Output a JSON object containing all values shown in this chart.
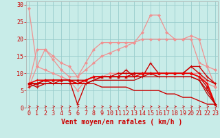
{
  "title": "",
  "xlabel": "Vent moyen/en rafales ( km/h )",
  "ylabel": "",
  "bg_color": "#c8ece8",
  "grid_color": "#99cccc",
  "x_ticks": [
    0,
    1,
    2,
    3,
    4,
    5,
    6,
    7,
    8,
    9,
    10,
    11,
    12,
    13,
    14,
    15,
    16,
    17,
    18,
    19,
    20,
    21,
    22,
    23
  ],
  "ylim": [
    0,
    31
  ],
  "xlim": [
    0,
    23
  ],
  "lines_light": [
    {
      "x": [
        0,
        1,
        2,
        3,
        4,
        5,
        6,
        7,
        8,
        9,
        10,
        11,
        12,
        13,
        14,
        15,
        16,
        17,
        18,
        19,
        20,
        21,
        22,
        23
      ],
      "y": [
        29,
        12,
        17,
        15,
        13,
        12,
        9,
        13,
        17,
        19,
        19,
        19,
        19,
        19,
        20,
        20,
        20,
        20,
        20,
        20,
        21,
        20,
        12,
        11
      ],
      "color": "#f09090",
      "lw": 0.9,
      "marker": "D",
      "ms": 2.0
    },
    {
      "x": [
        0,
        1,
        2,
        3,
        4,
        5,
        6,
        7,
        8,
        9,
        10,
        11,
        12,
        13,
        14,
        15,
        16,
        17,
        18,
        19,
        20,
        21,
        22,
        23
      ],
      "y": [
        7,
        17,
        17,
        14,
        11,
        9,
        9,
        11,
        13,
        15,
        16,
        17,
        18,
        19,
        22,
        27,
        27,
        22,
        20,
        20,
        20,
        13,
        12,
        6
      ],
      "color": "#f09090",
      "lw": 0.9,
      "marker": "D",
      "ms": 2.0
    },
    {
      "x": [
        0,
        1,
        2,
        3,
        4,
        5,
        6,
        7,
        8,
        9,
        10,
        11,
        12,
        13,
        14,
        15,
        16,
        17,
        18,
        19,
        20,
        21,
        22,
        23
      ],
      "y": [
        6,
        12,
        11,
        10,
        9,
        8,
        5,
        8,
        9,
        9,
        10,
        10,
        10,
        10,
        10,
        10,
        10,
        10,
        10,
        10,
        10,
        10,
        7,
        6
      ],
      "color": "#f09090",
      "lw": 0.9,
      "marker": "D",
      "ms": 2.0
    }
  ],
  "lines_dark": [
    {
      "x": [
        0,
        1,
        2,
        3,
        4,
        5,
        6,
        7,
        8,
        9,
        10,
        11,
        12,
        13,
        14,
        15,
        16,
        17,
        18,
        19,
        20,
        21,
        22,
        23
      ],
      "y": [
        7,
        7,
        8,
        8,
        8,
        8,
        8,
        8,
        9,
        9,
        9,
        9,
        9,
        10,
        10,
        10,
        10,
        10,
        10,
        10,
        10,
        9,
        6,
        1
      ],
      "color": "#cc0000",
      "lw": 1.0,
      "marker": "^",
      "ms": 2.5
    },
    {
      "x": [
        0,
        1,
        2,
        3,
        4,
        5,
        6,
        7,
        8,
        9,
        10,
        11,
        12,
        13,
        14,
        15,
        16,
        17,
        18,
        19,
        20,
        21,
        22,
        23
      ],
      "y": [
        6,
        7,
        8,
        7,
        7,
        7,
        7,
        7,
        8,
        9,
        9,
        9,
        11,
        9,
        9,
        13,
        10,
        10,
        10,
        10,
        12,
        12,
        9,
        7
      ],
      "color": "#cc0000",
      "lw": 1.0,
      "marker": "+",
      "ms": 2.5
    },
    {
      "x": [
        0,
        1,
        2,
        3,
        4,
        5,
        6,
        7,
        8,
        9,
        10,
        11,
        12,
        13,
        14,
        15,
        16,
        17,
        18,
        19,
        20,
        21,
        22,
        23
      ],
      "y": [
        7,
        7,
        8,
        8,
        8,
        8,
        7,
        8,
        9,
        9,
        9,
        10,
        10,
        10,
        10,
        10,
        10,
        10,
        10,
        10,
        12,
        10,
        8,
        7
      ],
      "color": "#cc0000",
      "lw": 1.0,
      "marker": "+",
      "ms": 2.5
    },
    {
      "x": [
        0,
        1,
        2,
        3,
        4,
        5,
        6,
        7,
        8,
        9,
        10,
        11,
        12,
        13,
        14,
        15,
        16,
        17,
        18,
        19,
        20,
        21,
        22,
        23
      ],
      "y": [
        7,
        8,
        8,
        8,
        8,
        8,
        7,
        8,
        9,
        9,
        9,
        9,
        9,
        9,
        10,
        10,
        10,
        10,
        10,
        10,
        10,
        9,
        7,
        1
      ],
      "color": "#ee0000",
      "lw": 1.2,
      "marker": "+",
      "ms": 2.5
    },
    {
      "x": [
        0,
        1,
        2,
        3,
        4,
        5,
        6,
        7,
        8,
        9,
        10,
        11,
        12,
        13,
        14,
        15,
        16,
        17,
        18,
        19,
        20,
        21,
        22,
        23
      ],
      "y": [
        7,
        6,
        7,
        7,
        8,
        8,
        1,
        7,
        8,
        9,
        9,
        9,
        9,
        9,
        9,
        10,
        9,
        9,
        9,
        9,
        9,
        8,
        5,
        1
      ],
      "color": "#cc0000",
      "lw": 1.0,
      "marker": "+",
      "ms": 2.5
    },
    {
      "x": [
        0,
        1,
        2,
        3,
        4,
        5,
        6,
        7,
        8,
        9,
        10,
        11,
        12,
        13,
        14,
        15,
        16,
        17,
        18,
        19,
        20,
        21,
        22,
        23
      ],
      "y": [
        7,
        7,
        7,
        7,
        7,
        7,
        7,
        7,
        8,
        8,
        8,
        8,
        8,
        8,
        9,
        9,
        9,
        9,
        9,
        9,
        9,
        8,
        4,
        1
      ],
      "color": "#bb0000",
      "lw": 0.9,
      "marker": null,
      "ms": 0
    }
  ],
  "line_declining": {
    "x": [
      0,
      1,
      2,
      3,
      4,
      5,
      6,
      7,
      8,
      9,
      10,
      11,
      12,
      13,
      14,
      15,
      16,
      17,
      18,
      19,
      20,
      21,
      22,
      23
    ],
    "y": [
      7,
      7,
      7,
      7,
      7,
      7,
      7,
      7,
      7,
      6,
      6,
      6,
      6,
      5,
      5,
      5,
      5,
      4,
      4,
      3,
      3,
      2,
      1,
      1
    ],
    "color": "#cc0000",
    "lw": 1.0,
    "marker": null,
    "ms": 0
  },
  "arrows_color": "#cc0000",
  "xlabel_color": "#cc0000",
  "xlabel_fontsize": 7,
  "tick_color": "#cc0000",
  "tick_fontsize": 6
}
